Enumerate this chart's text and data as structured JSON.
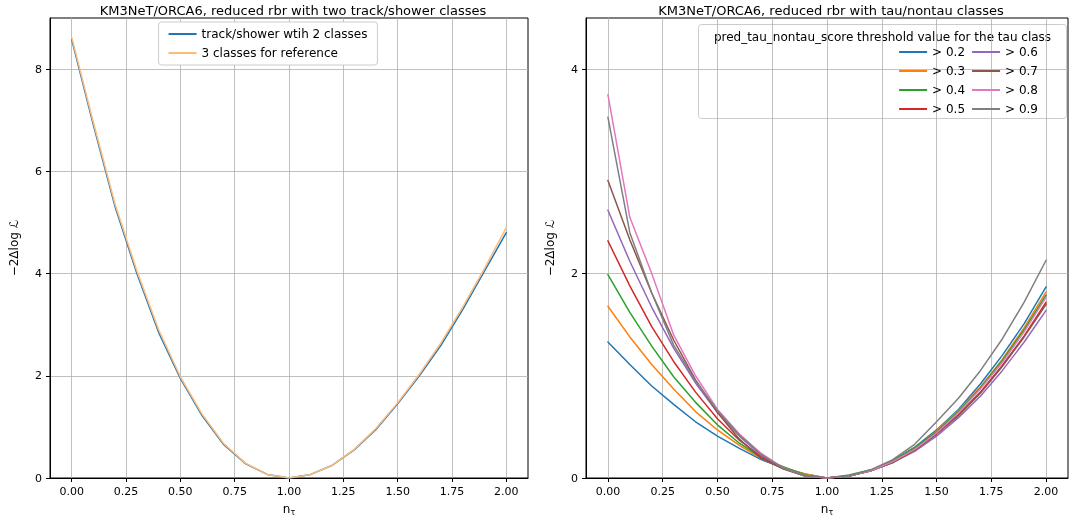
{
  "chart_data": [
    {
      "type": "line",
      "title": "KM3NeT/ORCA6, reduced rbr with two track/shower classes",
      "xlabel": "n$_{τ}$",
      "ylabel": "−2Δlog ℒ",
      "x": [
        0,
        0.1,
        0.2,
        0.3,
        0.4,
        0.5,
        0.6,
        0.7,
        0.8,
        0.9,
        1,
        1.1,
        1.2,
        1.3,
        1.4,
        1.5,
        1.6,
        1.7,
        1.8,
        1.9,
        2
      ],
      "xlim": [
        -0.1,
        2.1
      ],
      "xticks": [
        {
          "value": 0,
          "label": "0.00"
        },
        {
          "value": 0.25,
          "label": "0.25"
        },
        {
          "value": 0.5,
          "label": "0.50"
        },
        {
          "value": 0.75,
          "label": "0.75"
        },
        {
          "value": 1,
          "label": "1.00"
        },
        {
          "value": 1.25,
          "label": "1.25"
        },
        {
          "value": 1.5,
          "label": "1.50"
        },
        {
          "value": 1.75,
          "label": "1.75"
        },
        {
          "value": 2,
          "label": "2.00"
        }
      ],
      "ylim": [
        0,
        9.0
      ],
      "yticks": [
        0,
        2,
        4,
        6,
        8
      ],
      "grid": true,
      "legend": "top",
      "marker": "none",
      "line_style": "solid",
      "series": [
        {
          "name": "track/shower wtih 2 classes",
          "color": "#1f77b4",
          "values": [
            8.58,
            6.9,
            5.3,
            4.0,
            2.85,
            1.95,
            1.22,
            0.65,
            0.28,
            0.07,
            0,
            0.07,
            0.25,
            0.55,
            0.95,
            1.45,
            2.0,
            2.6,
            3.3,
            4.05,
            4.8
          ]
        },
        {
          "name": "3 classes for reference",
          "color": "#ffbb78",
          "values": [
            8.62,
            6.95,
            5.35,
            4.05,
            2.9,
            1.98,
            1.25,
            0.67,
            0.29,
            0.07,
            0,
            0.07,
            0.25,
            0.56,
            0.97,
            1.47,
            2.03,
            2.65,
            3.35,
            4.1,
            4.9
          ]
        }
      ]
    },
    {
      "type": "line",
      "title": "KM3NeT/ORCA6, reduced rbr with tau/nontau classes",
      "xlabel": "n$_{τ}$",
      "ylabel": "−2Δlog ℒ",
      "legend_title": "pred_tau_nontau_score threshold value for the tau class",
      "x": [
        0,
        0.1,
        0.2,
        0.3,
        0.4,
        0.5,
        0.6,
        0.7,
        0.8,
        0.9,
        1,
        1.1,
        1.2,
        1.3,
        1.4,
        1.5,
        1.6,
        1.7,
        1.8,
        1.9,
        2
      ],
      "xlim": [
        -0.1,
        2.1
      ],
      "xticks": [
        {
          "value": 0,
          "label": "0.00"
        },
        {
          "value": 0.25,
          "label": "0.25"
        },
        {
          "value": 0.5,
          "label": "0.50"
        },
        {
          "value": 0.75,
          "label": "0.75"
        },
        {
          "value": 1,
          "label": "1.00"
        },
        {
          "value": 1.25,
          "label": "1.25"
        },
        {
          "value": 1.5,
          "label": "1.50"
        },
        {
          "value": 1.75,
          "label": "1.75"
        },
        {
          "value": 2,
          "label": "2.00"
        }
      ],
      "ylim": [
        0,
        4.5
      ],
      "yticks": [
        0,
        2,
        4
      ],
      "grid": true,
      "legend": "top right",
      "marker": "none",
      "line_style": "solid",
      "series": [
        {
          "name": "> 0.2",
          "color": "#1f77b4",
          "values": [
            1.33,
            1.11,
            0.9,
            0.72,
            0.55,
            0.41,
            0.29,
            0.18,
            0.1,
            0.04,
            0,
            0.02,
            0.07,
            0.17,
            0.3,
            0.47,
            0.67,
            0.92,
            1.2,
            1.51,
            1.87
          ]
        },
        {
          "name": "> 0.3",
          "color": "#ff7f0e",
          "values": [
            1.68,
            1.38,
            1.11,
            0.87,
            0.65,
            0.47,
            0.32,
            0.19,
            0.1,
            0.04,
            0,
            0.02,
            0.07,
            0.16,
            0.29,
            0.46,
            0.66,
            0.89,
            1.16,
            1.47,
            1.82
          ]
        },
        {
          "name": "> 0.4",
          "color": "#2ca02c",
          "values": [
            1.99,
            1.62,
            1.29,
            0.99,
            0.74,
            0.52,
            0.34,
            0.2,
            0.11,
            0.03,
            0,
            0.03,
            0.08,
            0.17,
            0.3,
            0.45,
            0.65,
            0.88,
            1.15,
            1.45,
            1.79
          ]
        },
        {
          "name": "> 0.5",
          "color": "#d62728",
          "values": [
            2.32,
            1.88,
            1.48,
            1.14,
            0.84,
            0.58,
            0.37,
            0.21,
            0.09,
            0.02,
            0,
            0.02,
            0.07,
            0.15,
            0.28,
            0.43,
            0.62,
            0.84,
            1.1,
            1.39,
            1.72
          ]
        },
        {
          "name": "> 0.6",
          "color": "#9467bd",
          "values": [
            2.62,
            2.12,
            1.67,
            1.27,
            0.93,
            0.64,
            0.41,
            0.22,
            0.1,
            0.02,
            0,
            0.02,
            0.07,
            0.15,
            0.26,
            0.41,
            0.59,
            0.8,
            1.05,
            1.33,
            1.64
          ]
        },
        {
          "name": "> 0.7",
          "color": "#8c564b",
          "values": [
            2.91,
            2.33,
            1.81,
            1.35,
            0.96,
            0.64,
            0.38,
            0.19,
            0.09,
            0.02,
            0,
            0.02,
            0.07,
            0.15,
            0.27,
            0.43,
            0.61,
            0.83,
            1.09,
            1.38,
            1.7
          ]
        },
        {
          "name": "> 0.8",
          "color": "#e377c2",
          "values": [
            3.75,
            2.55,
            2.0,
            1.4,
            1.0,
            0.67,
            0.43,
            0.24,
            0.1,
            0.02,
            0,
            0.02,
            0.07,
            0.16,
            0.28,
            0.44,
            0.64,
            0.87,
            1.13,
            1.43,
            1.77
          ]
        },
        {
          "name": "> 0.9",
          "color": "#7f7f7f",
          "values": [
            3.53,
            2.4,
            1.81,
            1.3,
            0.95,
            0.66,
            0.42,
            0.23,
            0.1,
            0.02,
            0,
            0.02,
            0.08,
            0.18,
            0.33,
            0.55,
            0.78,
            1.05,
            1.36,
            1.72,
            2.13
          ]
        }
      ]
    }
  ]
}
